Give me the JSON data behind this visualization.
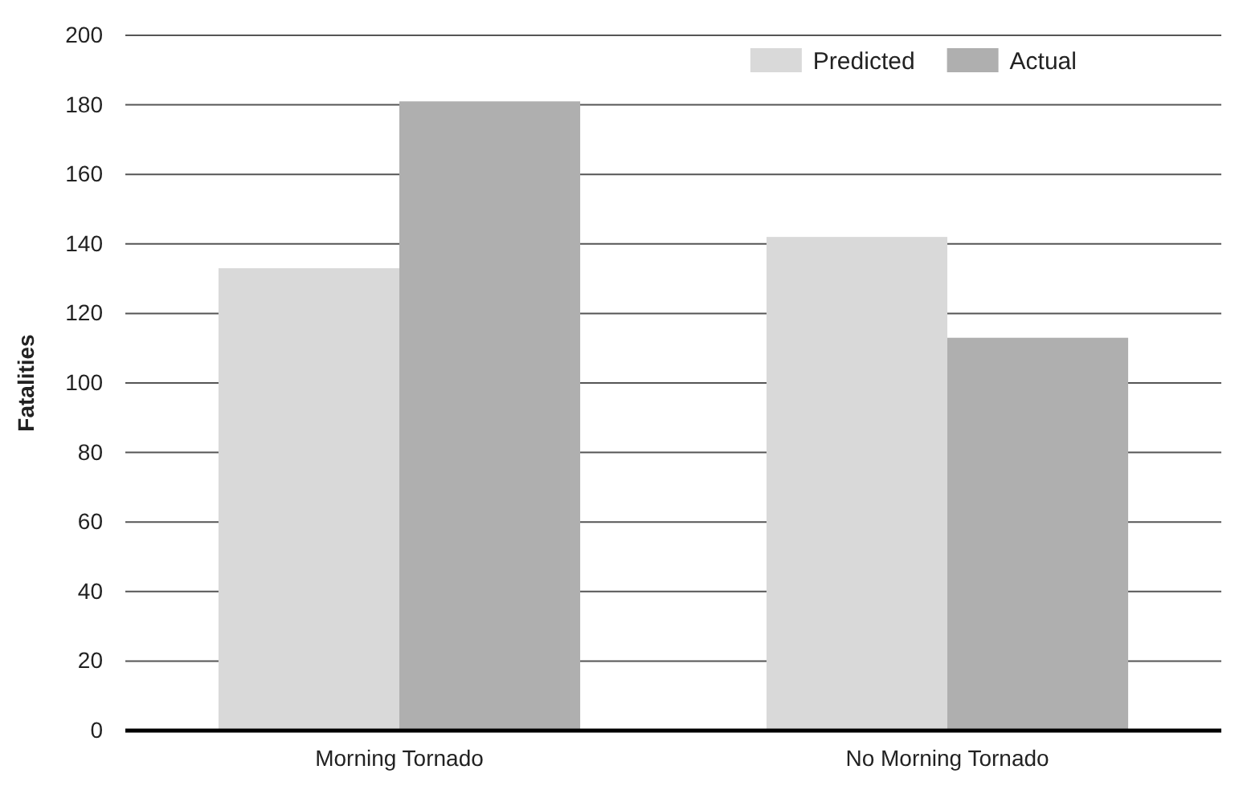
{
  "chart_data": {
    "type": "bar",
    "ylabel": "Fatalities",
    "categories": [
      "Morning Tornado",
      "No Morning Tornado"
    ],
    "series": [
      {
        "name": "Predicted",
        "color": "#d9d9d9",
        "values": [
          133,
          142
        ]
      },
      {
        "name": "Actual",
        "color": "#afafaf",
        "values": [
          181,
          113
        ]
      }
    ],
    "ylim": [
      0,
      200
    ],
    "yticks": [
      0,
      20,
      40,
      60,
      80,
      100,
      120,
      140,
      160,
      180,
      200
    ],
    "grid": "y",
    "legend": "top right"
  }
}
